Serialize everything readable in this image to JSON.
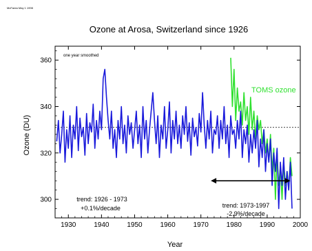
{
  "stamp": "McFarea May 1 1998",
  "chart_data": {
    "type": "line",
    "title": "Ozone at Arosa, Switzerland since 1926",
    "xlabel": "Year",
    "ylabel": "Ozone (DU)",
    "xlim": [
      1926,
      2000
    ],
    "ylim": [
      292,
      366
    ],
    "xticks": [
      1930,
      1940,
      1950,
      1960,
      1970,
      1980,
      1990,
      2000
    ],
    "yticks": [
      300,
      320,
      340,
      360
    ],
    "grid": false,
    "annotations": {
      "smoothing_note": "one year smoothed",
      "trend1_line1": "trend: 1926 - 1973",
      "trend1_line2": "+0.1%/decade",
      "trend2_line1": "trend: 1973-1997",
      "trend2_line2": "-2.9%/decade",
      "toms_label": "TOMS ozone"
    },
    "reference_line": {
      "y": 331,
      "x_range": [
        1926,
        2000
      ],
      "style": "dashed"
    },
    "trend_arrow": {
      "x_range": [
        1973,
        1997
      ],
      "y": 308
    },
    "colors": {
      "arosa": "#1a1adb",
      "toms": "#2fe02f",
      "axis": "#000000"
    },
    "series": [
      {
        "name": "",
        "color": "#1a1adb",
        "x": [
          1926.5,
          1927,
          1927.5,
          1928,
          1928.5,
          1929,
          1929.5,
          1930,
          1930.5,
          1931,
          1931.5,
          1932,
          1932.5,
          1933,
          1933.5,
          1934,
          1934.5,
          1935,
          1935.5,
          1936,
          1936.5,
          1937,
          1937.5,
          1938,
          1938.5,
          1939,
          1939.5,
          1940,
          1940.5,
          1941,
          1941.5,
          1942,
          1942.5,
          1943,
          1943.5,
          1944,
          1944.5,
          1945,
          1945.5,
          1946,
          1946.5,
          1947,
          1947.5,
          1948,
          1948.5,
          1949,
          1949.5,
          1950,
          1950.5,
          1951,
          1951.5,
          1952,
          1952.5,
          1953,
          1953.5,
          1954,
          1954.5,
          1955,
          1955.5,
          1956,
          1956.5,
          1957,
          1957.5,
          1958,
          1958.5,
          1959,
          1959.5,
          1960,
          1960.5,
          1961,
          1961.5,
          1962,
          1962.5,
          1963,
          1963.5,
          1964,
          1964.5,
          1965,
          1965.5,
          1966,
          1966.5,
          1967,
          1967.5,
          1968,
          1968.5,
          1969,
          1969.5,
          1970,
          1970.5,
          1971,
          1971.5,
          1972,
          1972.5,
          1973,
          1973.5,
          1974,
          1974.5,
          1975,
          1975.5,
          1976,
          1976.5,
          1977,
          1977.5,
          1978,
          1978.5,
          1979,
          1979.5,
          1980,
          1980.5,
          1981,
          1981.5,
          1982,
          1982.5,
          1983,
          1983.5,
          1984,
          1984.5,
          1985,
          1985.5,
          1986,
          1986.5,
          1987,
          1987.5,
          1988,
          1988.5,
          1989,
          1989.5,
          1990,
          1990.5,
          1991,
          1991.5,
          1992,
          1992.5,
          1993,
          1993.5,
          1994,
          1994.5,
          1995,
          1995.5,
          1996,
          1996.5,
          1997,
          1997.5
        ],
        "values": [
          325,
          334,
          320,
          328,
          338,
          316,
          330,
          322,
          336,
          318,
          332,
          326,
          340,
          321,
          335,
          327,
          331,
          319,
          337,
          324,
          333,
          329,
          341,
          322,
          334,
          326,
          338,
          330,
          352,
          356,
          344,
          334,
          326,
          338,
          322,
          330,
          318,
          334,
          326,
          340,
          324,
          332,
          320,
          336,
          328,
          333,
          322,
          330,
          338,
          324,
          332,
          318,
          340,
          326,
          334,
          320,
          330,
          338,
          346,
          334,
          324,
          336,
          318,
          332,
          326,
          340,
          322,
          330,
          342,
          320,
          334,
          326,
          338,
          324,
          332,
          322,
          336,
          328,
          340,
          325,
          333,
          319,
          335,
          327,
          331,
          323,
          337,
          329,
          346,
          332,
          322,
          334,
          326,
          338,
          320,
          330,
          328,
          336,
          322,
          334,
          326,
          340,
          324,
          332,
          318,
          336,
          328,
          330,
          322,
          334,
          326,
          338,
          318,
          330,
          324,
          332,
          316,
          328,
          320,
          330,
          322,
          334,
          314,
          326,
          318,
          330,
          312,
          324,
          316,
          326,
          306,
          320,
          312,
          322,
          296,
          316,
          306,
          318,
          300,
          312,
          304,
          316,
          296
        ]
      },
      {
        "name": "TOMS ozone",
        "color": "#2fe02f",
        "x": [
          1979,
          1979.5,
          1980,
          1980.5,
          1981,
          1981.5,
          1982,
          1982.5,
          1983,
          1983.5,
          1984,
          1984.5,
          1985,
          1985.5,
          1986,
          1986.5,
          1987,
          1987.5,
          1988,
          1988.5,
          1989,
          1989.5,
          1990,
          1990.5,
          1991,
          1991.5,
          1992,
          1992.5,
          1993,
          1993.5,
          1994,
          1994.5,
          1995,
          1995.5,
          1996,
          1996.5,
          1997,
          1997.5
        ],
        "values": [
          361,
          340,
          356,
          334,
          348,
          338,
          342,
          332,
          346,
          334,
          340,
          328,
          344,
          330,
          338,
          326,
          336,
          330,
          334,
          324,
          330,
          320,
          326,
          316,
          328,
          312,
          322,
          300,
          320,
          306,
          314,
          300,
          316,
          306,
          312,
          304,
          318,
          310
        ]
      }
    ]
  }
}
